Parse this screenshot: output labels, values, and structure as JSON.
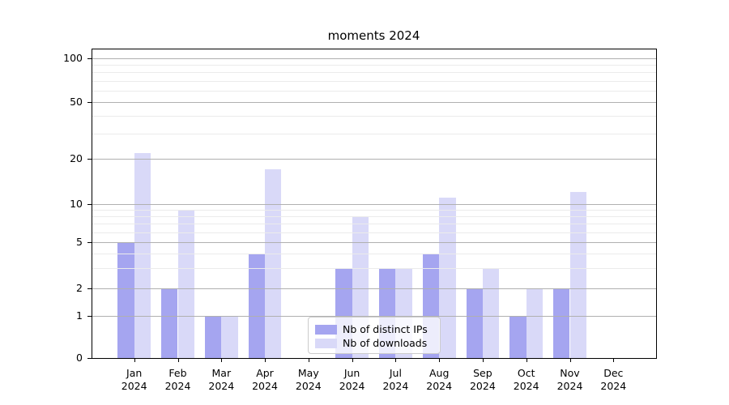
{
  "title": "moments 2024",
  "legend": {
    "entries": [
      {
        "label": "Nb of distinct IPs",
        "series_key": "ips"
      },
      {
        "label": "Nb of downloads",
        "series_key": "downloads"
      }
    ]
  },
  "colors": {
    "ips": "#a5a5f0",
    "downloads": "#d9d9f8"
  },
  "chart_data": {
    "type": "bar",
    "title": "moments 2024",
    "categories": [
      "Jan",
      "Feb",
      "Mar",
      "Apr",
      "May",
      "Jun",
      "Jul",
      "Aug",
      "Sep",
      "Oct",
      "Nov",
      "Dec"
    ],
    "category_year_label": "2024",
    "series": [
      {
        "name": "Nb of distinct IPs",
        "color_key": "ips",
        "values": [
          5,
          2,
          1,
          4,
          0,
          3,
          3,
          4,
          2,
          1,
          2,
          0
        ]
      },
      {
        "name": "Nb of downloads",
        "color_key": "downloads",
        "values": [
          22,
          9,
          1,
          17,
          0,
          8,
          3,
          11,
          3,
          2,
          12,
          0
        ]
      }
    ],
    "yscale": "log",
    "yticks": [
      0,
      1,
      2,
      5,
      10,
      20,
      50,
      100
    ],
    "minor_gridlines": [
      3,
      4,
      6,
      7,
      8,
      9,
      30,
      40,
      60,
      70,
      80,
      90
    ],
    "ylim": [
      0,
      110
    ],
    "grid": "both, drawn above bars",
    "legend_position": "lower center",
    "xlabel": "",
    "ylabel": ""
  }
}
